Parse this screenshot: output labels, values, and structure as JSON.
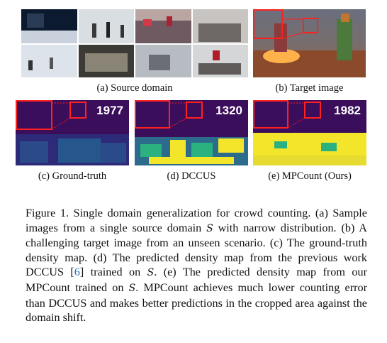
{
  "figure": {
    "panels": [
      {
        "id": "a",
        "caption": "(a) Source domain"
      },
      {
        "id": "b",
        "caption": "(b) Target image"
      },
      {
        "id": "c",
        "caption": "(c) Ground-truth",
        "count": "1977"
      },
      {
        "id": "d",
        "caption": "(d) DCCUS",
        "count": "1320"
      },
      {
        "id": "e",
        "caption": "(e) MPCount (Ours)",
        "count": "1982"
      }
    ],
    "caption_parts": {
      "line1": "Figure 1.  Single domain generalization for crowd counting.  (a) Sample images from a single source domain ",
      "S": "S",
      "line2": " with narrow distribution.  (b) A challenging target image from an unseen scenario. (c) The ground-truth density map.  (d) The predicted density map from the previous work DCCUS [",
      "ref": "6",
      "line3": "] trained on ",
      "line4": ".  (e) The predicted density map from our MPCount trained on ",
      "line5": ".  MPCount achieves much lower counting error than DCCUS and makes better predictions in the cropped area against the domain shift."
    }
  },
  "colors": {
    "highlight": "#ff2020",
    "density_bg": "#3a0e5a",
    "density_yellow": "#f2e52a",
    "density_green": "#2bb07f",
    "link": "#2a6fbf"
  }
}
